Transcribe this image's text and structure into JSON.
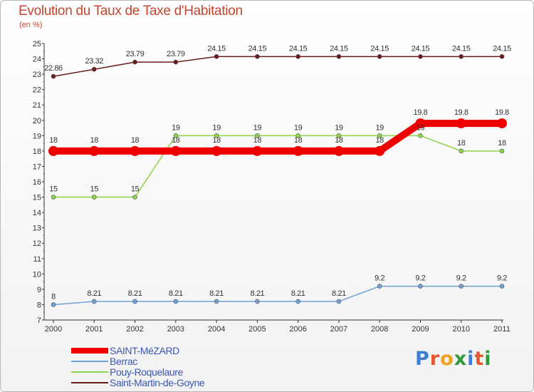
{
  "title": "Evolution du Taux de Taxe d'Habitation",
  "subtitle": "(en %)",
  "logo": {
    "text": "Proxiti",
    "letters": [
      "P",
      "r",
      "o",
      "x",
      "i",
      "t",
      "i"
    ],
    "colors": [
      "#3f7fd3",
      "#e4592f",
      "#f2a21a",
      "#2f9a3a",
      "#3f7fd3",
      "#e4592f",
      "#2f9a3a"
    ]
  },
  "chart_data": {
    "type": "line",
    "title": "Evolution du Taux de Taxe d'Habitation",
    "ylabel": "(en %)",
    "xlabel": "",
    "x": [
      "2000",
      "2001",
      "2002",
      "2003",
      "2004",
      "2005",
      "2006",
      "2007",
      "2008",
      "2009",
      "2010",
      "2011"
    ],
    "ylim": [
      7,
      25
    ],
    "yticks": [
      "7",
      "8",
      "9",
      "10",
      "11",
      "12",
      "13",
      "14",
      "15",
      "16",
      "17",
      "18",
      "19",
      "20",
      "21",
      "22",
      "23",
      "24",
      "25"
    ],
    "grid": false,
    "legend": "bottom-left",
    "series": [
      {
        "name": "Saint-Martin-de-Goyne",
        "color": "#6b1a1a",
        "values": [
          22.86,
          23.32,
          23.79,
          23.79,
          24.15,
          24.15,
          24.15,
          24.15,
          24.15,
          24.15,
          24.15,
          24.15
        ],
        "labels": [
          "22.86",
          "23.32",
          "23.79",
          "23.79",
          "24.15",
          "24.15",
          "24.15",
          "24.15",
          "24.15",
          "24.15",
          "24.15",
          "24.15"
        ]
      },
      {
        "name": "Pouy-Roquelaure",
        "color": "#8cd44a",
        "values": [
          15,
          15,
          15,
          19,
          19,
          19,
          19,
          19,
          19,
          19,
          18,
          18
        ],
        "labels": [
          "15",
          "15",
          "15",
          "19",
          "19",
          "19",
          "19",
          "19",
          "19",
          "19",
          "18",
          "18"
        ]
      },
      {
        "name": "Berrac",
        "color": "#6fa2d4",
        "values": [
          8,
          8.21,
          8.21,
          8.21,
          8.21,
          8.21,
          8.21,
          8.21,
          9.2,
          9.2,
          9.2,
          9.2
        ],
        "labels": [
          "8",
          "8.21",
          "8.21",
          "8.21",
          "8.21",
          "8.21",
          "8.21",
          "8.21",
          "9.2",
          "9.2",
          "9.2",
          "9.2"
        ]
      },
      {
        "name": "SAINT-MéZARD",
        "color": "#ee0000",
        "values": [
          18,
          18,
          18,
          18,
          18,
          18,
          18,
          18,
          18,
          19.8,
          19.8,
          19.8
        ],
        "labels": [
          "18",
          "18",
          "18",
          "18",
          "18",
          "18",
          "18",
          "18",
          "18",
          "19.8",
          "19.8",
          "19.8"
        ]
      }
    ],
    "legend_entries": [
      {
        "name": "SAINT-MéZARD",
        "color": "#ee0000"
      },
      {
        "name": "Berrac",
        "color": "#6fa2d4"
      },
      {
        "name": "Pouy-Roquelaure",
        "color": "#8cd44a"
      },
      {
        "name": "Saint-Martin-de-Goyne",
        "color": "#6b1a1a"
      }
    ]
  }
}
